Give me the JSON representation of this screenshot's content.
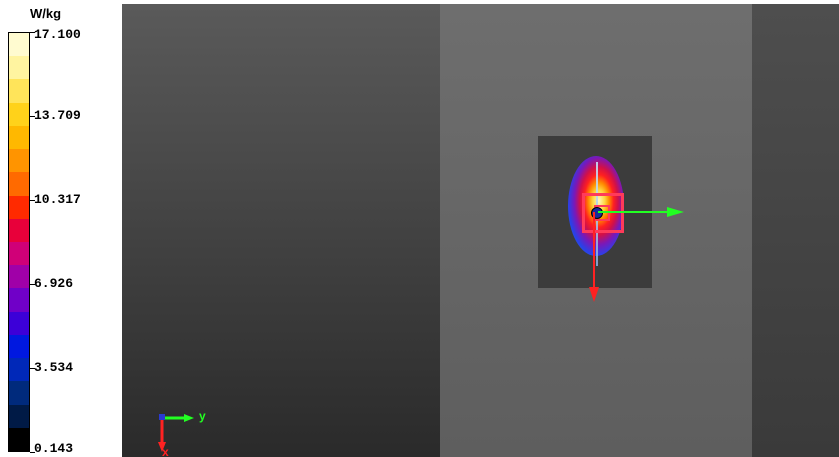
{
  "legend": {
    "unit": "W/kg",
    "ticks": [
      {
        "label": "17.100",
        "value": 17.1
      },
      {
        "label": "13.709",
        "value": 13.709
      },
      {
        "label": "10.317",
        "value": 10.317
      },
      {
        "label": "6.926",
        "value": 6.926
      },
      {
        "label": "3.534",
        "value": 3.534
      },
      {
        "label": "0.143",
        "value": 0.143
      }
    ],
    "colors": [
      "#fffbd0",
      "#fff4a0",
      "#ffe45a",
      "#ffd21a",
      "#ffb800",
      "#ff9400",
      "#ff6a00",
      "#ff2a00",
      "#e8003a",
      "#d00078",
      "#a000a8",
      "#7000c8",
      "#3c00d8",
      "#0018e0",
      "#0028b8",
      "#002a7c",
      "#001a46",
      "#000000"
    ]
  },
  "axes": {
    "y_label": "y",
    "x_label": "x"
  }
}
